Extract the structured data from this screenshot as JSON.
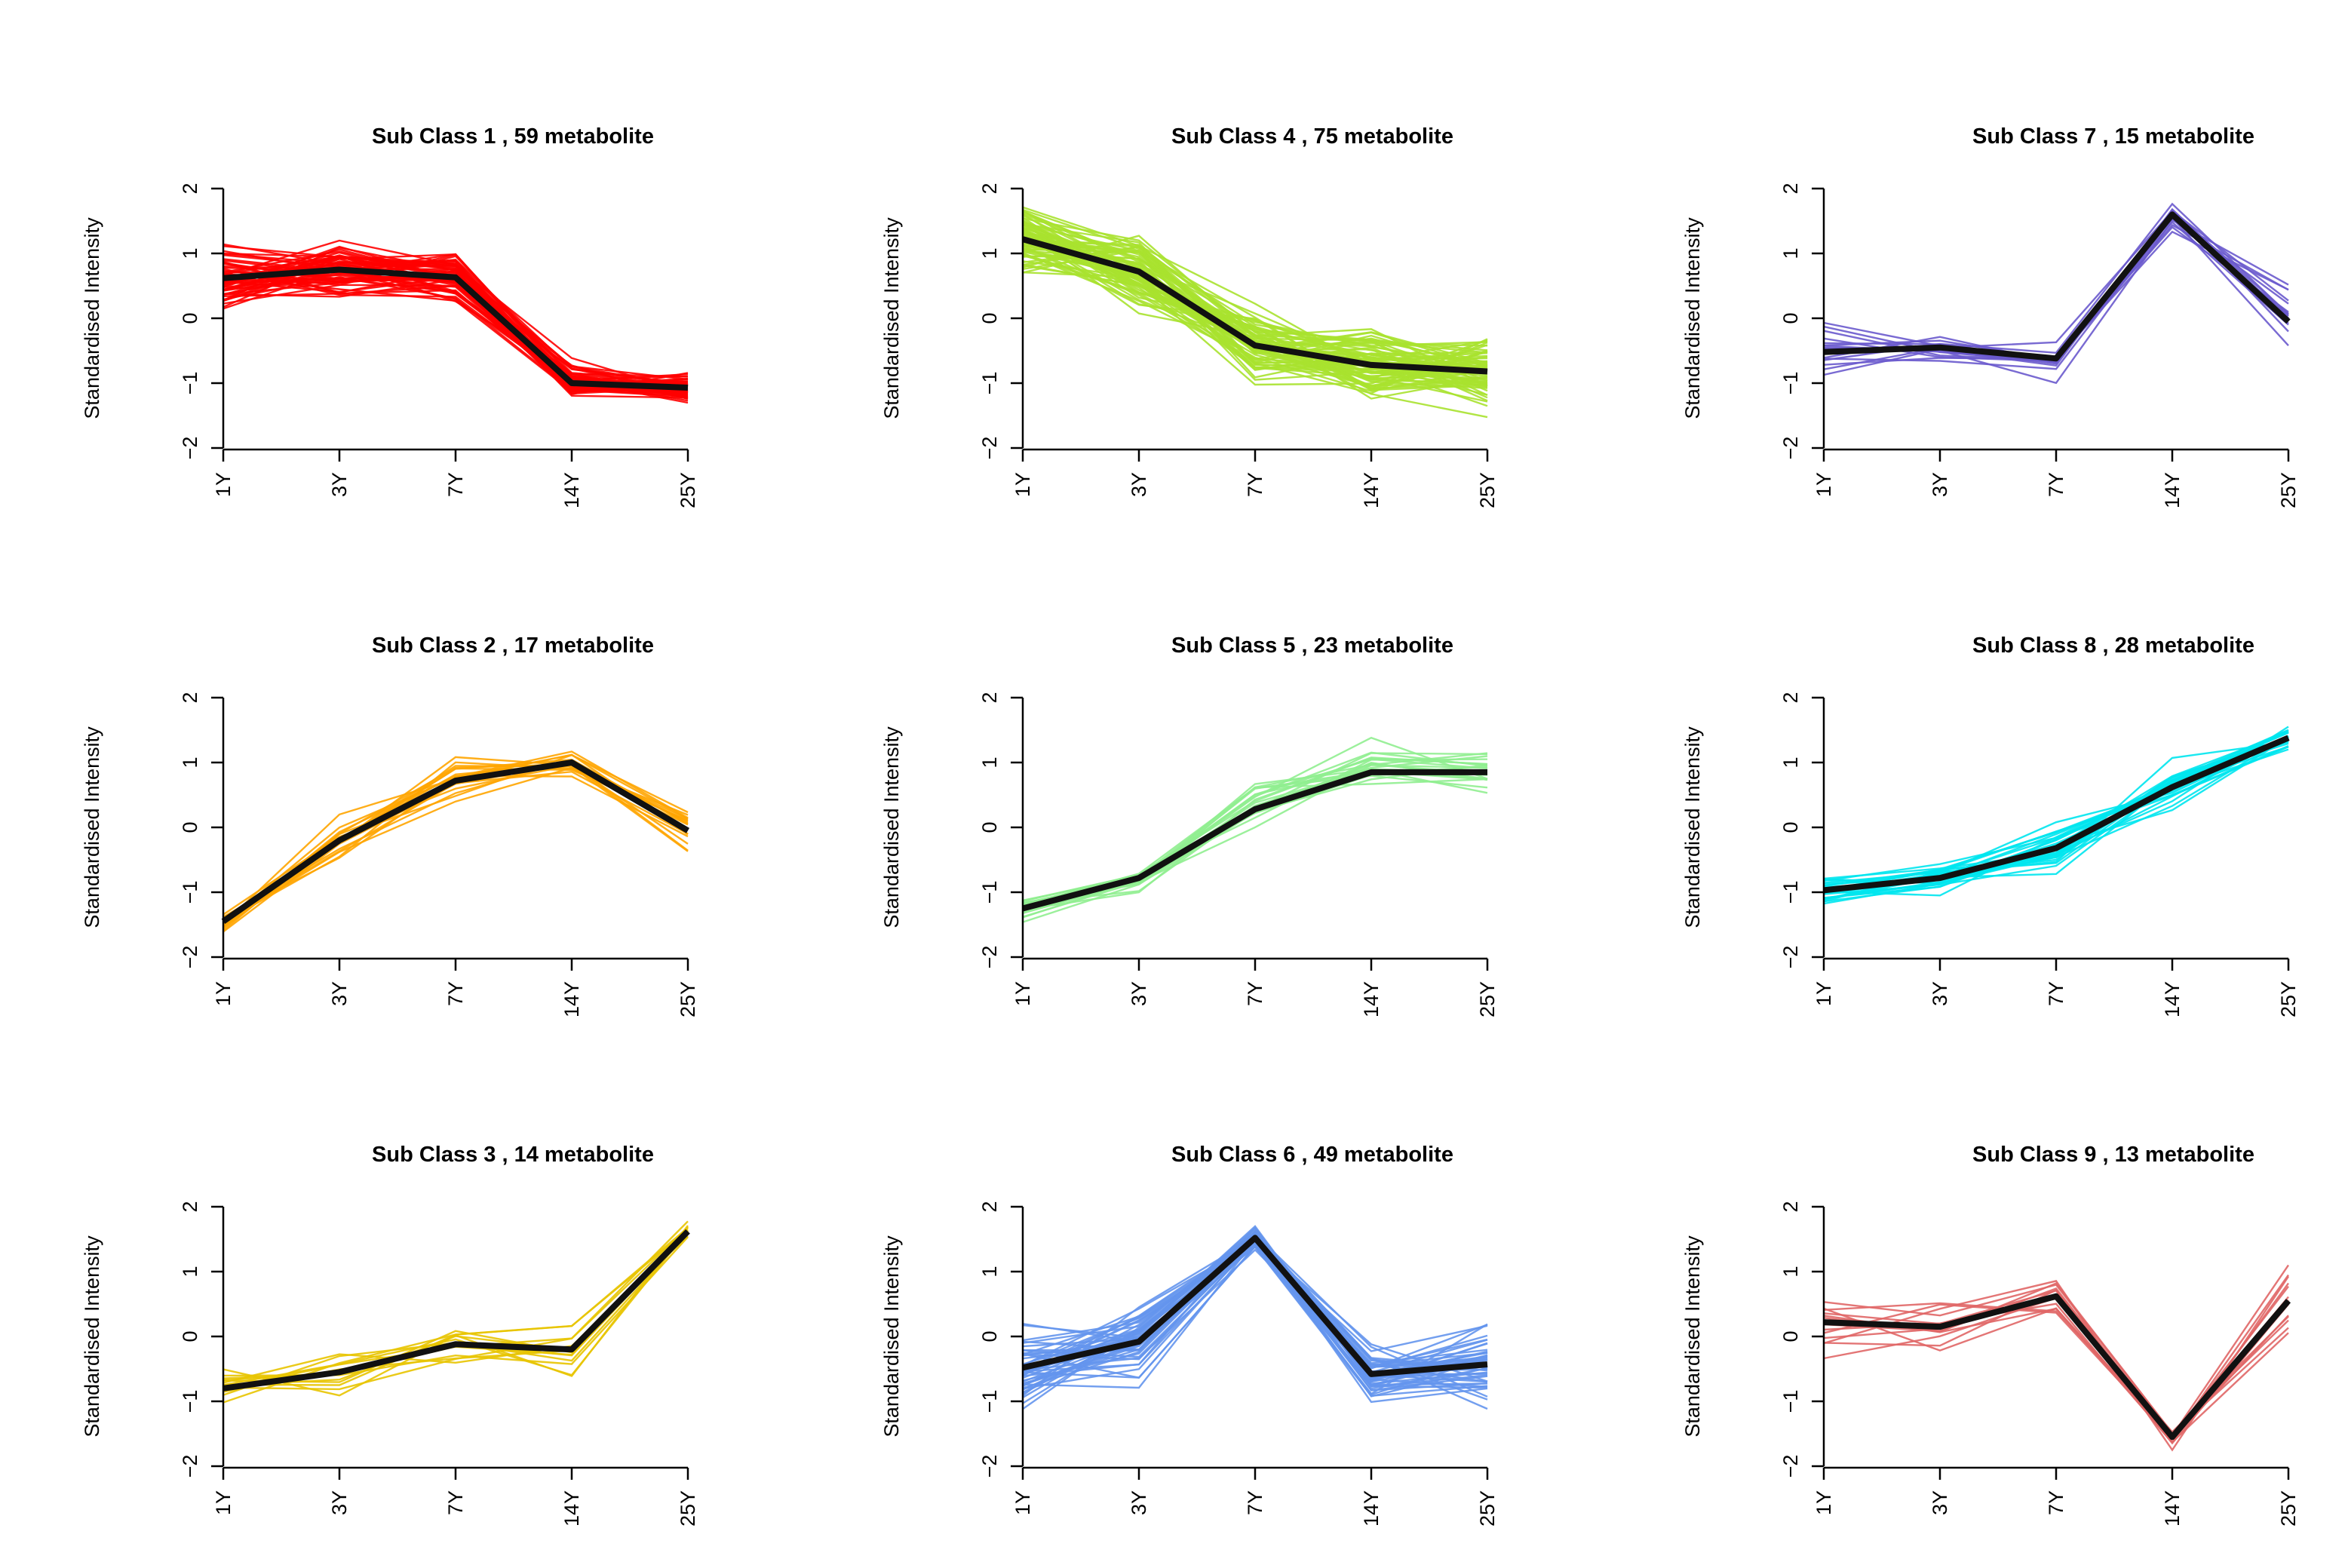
{
  "chart_data": [
    {
      "type": "line",
      "title": "Sub Class  1  , 59 metabolite",
      "ylabel": "Standardised Intensity",
      "x": [
        "1Y",
        "3Y",
        "7Y",
        "14Y",
        "25Y"
      ],
      "y_ticks": [
        "−2",
        "−1",
        "0",
        "1",
        "2"
      ],
      "ylim": [
        -2,
        2
      ],
      "color": "#ff0000",
      "n_lines": 59,
      "mean": [
        0.62,
        0.75,
        0.63,
        -1.0,
        -1.07
      ],
      "spread": [
        0.5,
        0.45,
        0.4,
        0.3,
        0.25
      ]
    },
    {
      "type": "line",
      "title": "Sub Class  2  , 17 metabolite",
      "ylabel": "Standardised Intensity",
      "x": [
        "1Y",
        "3Y",
        "7Y",
        "14Y",
        "25Y"
      ],
      "y_ticks": [
        "−2",
        "−1",
        "0",
        "1",
        "2"
      ],
      "ylim": [
        -2,
        2
      ],
      "color": "#ffa500",
      "n_lines": 17,
      "mean": [
        -1.45,
        -0.2,
        0.72,
        1.0,
        -0.05
      ],
      "spread": [
        0.15,
        0.4,
        0.3,
        0.3,
        0.4
      ]
    },
    {
      "type": "line",
      "title": "Sub Class  3  , 14 metabolite",
      "ylabel": "Standardised Intensity",
      "x": [
        "1Y",
        "3Y",
        "7Y",
        "14Y",
        "25Y"
      ],
      "y_ticks": [
        "−2",
        "−1",
        "0",
        "1",
        "2"
      ],
      "ylim": [
        -2,
        2
      ],
      "color": "#e8c400",
      "n_lines": 14,
      "mean": [
        -0.8,
        -0.55,
        -0.12,
        -0.2,
        1.62
      ],
      "spread": [
        0.3,
        0.35,
        0.4,
        0.45,
        0.18
      ]
    },
    {
      "type": "line",
      "title": "Sub Class  4  , 75 metabolite",
      "ylabel": "Standardised Intensity",
      "x": [
        "1Y",
        "3Y",
        "7Y",
        "14Y",
        "25Y"
      ],
      "y_ticks": [
        "−2",
        "−1",
        "0",
        "1",
        "2"
      ],
      "ylim": [
        -2,
        2
      ],
      "color": "#a8e22f",
      "n_lines": 75,
      "mean": [
        1.22,
        0.72,
        -0.42,
        -0.72,
        -0.82
      ],
      "spread": [
        0.55,
        0.5,
        0.55,
        0.65,
        0.6
      ]
    },
    {
      "type": "line",
      "title": "Sub Class  5  , 23 metabolite",
      "ylabel": "Standardised Intensity",
      "x": [
        "1Y",
        "3Y",
        "7Y",
        "14Y",
        "25Y"
      ],
      "y_ticks": [
        "−2",
        "−1",
        "0",
        "1",
        "2"
      ],
      "ylim": [
        -2,
        2
      ],
      "color": "#90ee90",
      "n_lines": 23,
      "mean": [
        -1.25,
        -0.78,
        0.28,
        0.85,
        0.85
      ],
      "spread": [
        0.2,
        0.25,
        0.45,
        0.45,
        0.35
      ]
    },
    {
      "type": "line",
      "title": "Sub Class  6  , 49 metabolite",
      "ylabel": "Standardised Intensity",
      "x": [
        "1Y",
        "3Y",
        "7Y",
        "14Y",
        "25Y"
      ],
      "y_ticks": [
        "−2",
        "−1",
        "0",
        "1",
        "2"
      ],
      "ylim": [
        -2,
        2
      ],
      "color": "#6495ed",
      "n_lines": 49,
      "mean": [
        -0.48,
        -0.08,
        1.52,
        -0.58,
        -0.43
      ],
      "spread": [
        0.6,
        0.65,
        0.2,
        0.45,
        0.6
      ]
    },
    {
      "type": "line",
      "title": "Sub Class  7  , 15 metabolite",
      "ylabel": "Standardised Intensity",
      "x": [
        "1Y",
        "3Y",
        "7Y",
        "14Y",
        "25Y"
      ],
      "y_ticks": [
        "−2",
        "−1",
        "0",
        "1",
        "2"
      ],
      "ylim": [
        -2,
        2
      ],
      "color": "#6a5acd",
      "n_lines": 15,
      "mean": [
        -0.52,
        -0.45,
        -0.62,
        1.6,
        -0.05
      ],
      "spread": [
        0.4,
        0.4,
        0.45,
        0.3,
        0.55
      ]
    },
    {
      "type": "line",
      "title": "Sub Class  8  , 28 metabolite",
      "ylabel": "Standardised Intensity",
      "x": [
        "1Y",
        "3Y",
        "7Y",
        "14Y",
        "25Y"
      ],
      "y_ticks": [
        "−2",
        "−1",
        "0",
        "1",
        "2"
      ],
      "ylim": [
        -2,
        2
      ],
      "color": "#00e5ee",
      "n_lines": 28,
      "mean": [
        -0.97,
        -0.78,
        -0.32,
        0.62,
        1.38
      ],
      "spread": [
        0.25,
        0.2,
        0.4,
        0.35,
        0.15
      ]
    },
    {
      "type": "line",
      "title": "Sub Class  9  , 13 metabolite",
      "ylabel": "Standardised Intensity",
      "x": [
        "1Y",
        "3Y",
        "7Y",
        "14Y",
        "25Y"
      ],
      "y_ticks": [
        "−2",
        "−1",
        "0",
        "1",
        "2"
      ],
      "ylim": [
        -2,
        2
      ],
      "color": "#e06666",
      "n_lines": 13,
      "mean": [
        0.22,
        0.15,
        0.62,
        -1.55,
        0.55
      ],
      "spread": [
        0.55,
        0.6,
        0.4,
        0.18,
        0.6
      ]
    }
  ]
}
